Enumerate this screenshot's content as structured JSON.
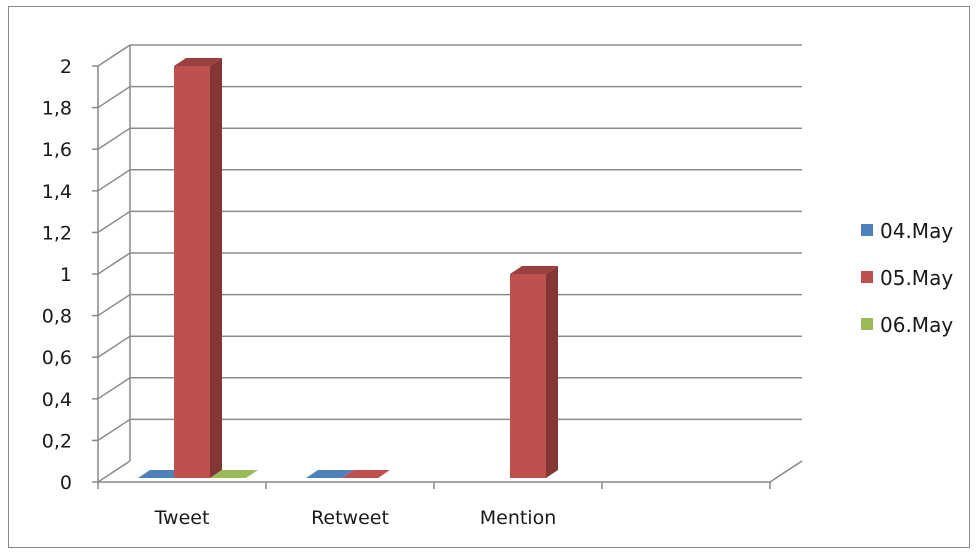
{
  "chart_data": {
    "type": "bar",
    "style": "3d-clustered-column",
    "categories": [
      "Tweet",
      "Retweet",
      "Mention",
      ""
    ],
    "series": [
      {
        "name": "04.May",
        "color": "#4f81bd",
        "values": [
          0,
          0,
          null,
          null
        ]
      },
      {
        "name": "05.May",
        "color": "#c0504d",
        "values": [
          2,
          0,
          1,
          null
        ]
      },
      {
        "name": "06.May",
        "color": "#9bbb59",
        "values": [
          0,
          null,
          null,
          null
        ]
      }
    ],
    "yticks": [
      "0",
      "0,2",
      "0,4",
      "0,6",
      "0,8",
      "1",
      "1,2",
      "1,4",
      "1,6",
      "1,8",
      "2"
    ],
    "ylim": [
      0,
      2
    ],
    "grid": true,
    "legend_position": "right"
  }
}
